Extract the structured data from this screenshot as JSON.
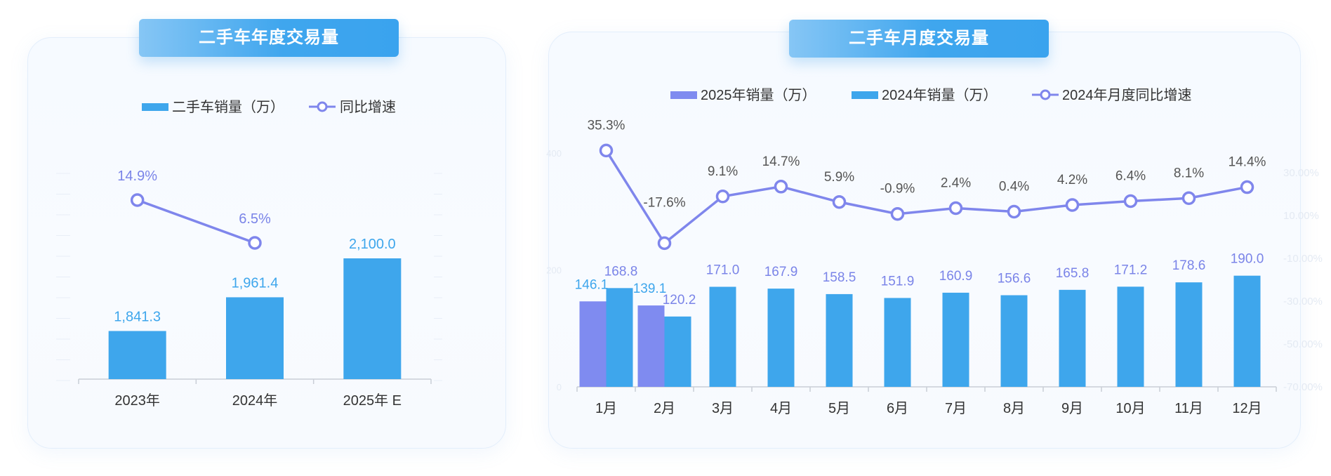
{
  "titles": {
    "annual": "二手车年度交易量",
    "monthly": "二手车月度交易量"
  },
  "colors": {
    "bar_blue": "#3ea6ec",
    "bar_purple": "#7f8bf0",
    "line_purple": "#7f86ec",
    "label_blue": "#3ea6ec",
    "label_purple": "#7a84e8",
    "text_dark": "#333333",
    "text_gray": "#555555"
  },
  "chart_data": [
    {
      "type": "bar",
      "title": "二手车年度交易量",
      "categories": [
        "2023年",
        "2024年",
        "2025年 E"
      ],
      "series": [
        {
          "name": "二手车销量（万）",
          "type": "bar",
          "values": [
            1841.3,
            1961.4,
            2100.0
          ],
          "labels": [
            "1,841.3",
            "1,961.4",
            "2,100.0"
          ]
        },
        {
          "name": "同比增速",
          "type": "line",
          "values": [
            14.9,
            6.5,
            null
          ],
          "labels": [
            "14.9%",
            "6.5%",
            ""
          ]
        }
      ],
      "legend_position": "top-center",
      "grid": false
    },
    {
      "type": "bar",
      "title": "二手车月度交易量",
      "categories": [
        "1月",
        "2月",
        "3月",
        "4月",
        "5月",
        "6月",
        "7月",
        "8月",
        "9月",
        "10月",
        "11月",
        "12月"
      ],
      "series": [
        {
          "name": "2025年销量（万）",
          "type": "bar",
          "values": [
            146.1,
            139.1,
            null,
            null,
            null,
            null,
            null,
            null,
            null,
            null,
            null,
            null
          ],
          "labels": [
            "146.1",
            "139.1",
            "",
            "",
            "",
            "",
            "",
            "",
            "",
            "",
            "",
            ""
          ]
        },
        {
          "name": "2024年销量（万）",
          "type": "bar",
          "values": [
            168.8,
            120.2,
            171.0,
            167.9,
            158.5,
            151.9,
            160.9,
            156.6,
            165.8,
            171.2,
            178.6,
            190.0
          ],
          "labels": [
            "168.8",
            "120.2",
            "171.0",
            "167.9",
            "158.5",
            "151.9",
            "160.9",
            "156.6",
            "165.8",
            "171.2",
            "178.6",
            "190.0"
          ]
        },
        {
          "name": "2024年月度同比增速",
          "type": "line",
          "values": [
            35.3,
            -17.6,
            9.1,
            14.7,
            5.9,
            -0.9,
            2.4,
            0.4,
            4.2,
            6.4,
            8.1,
            14.4
          ],
          "labels": [
            "35.3%",
            "-17.6%",
            "9.1%",
            "14.7%",
            "5.9%",
            "-0.9%",
            "2.4%",
            "0.4%",
            "4.2%",
            "6.4%",
            "8.1%",
            "14.4%"
          ]
        }
      ],
      "y_left": {
        "range": [
          0,
          400
        ],
        "ticks": [
          "0",
          "200",
          "400"
        ]
      },
      "y_right": {
        "range": [
          -70,
          30
        ],
        "ticks": [
          "30.00%",
          "10.00%",
          "-10.00%",
          "-30.00%",
          "-50.00%",
          "-70.00%"
        ]
      },
      "legend_position": "top-center",
      "grid": false
    }
  ]
}
